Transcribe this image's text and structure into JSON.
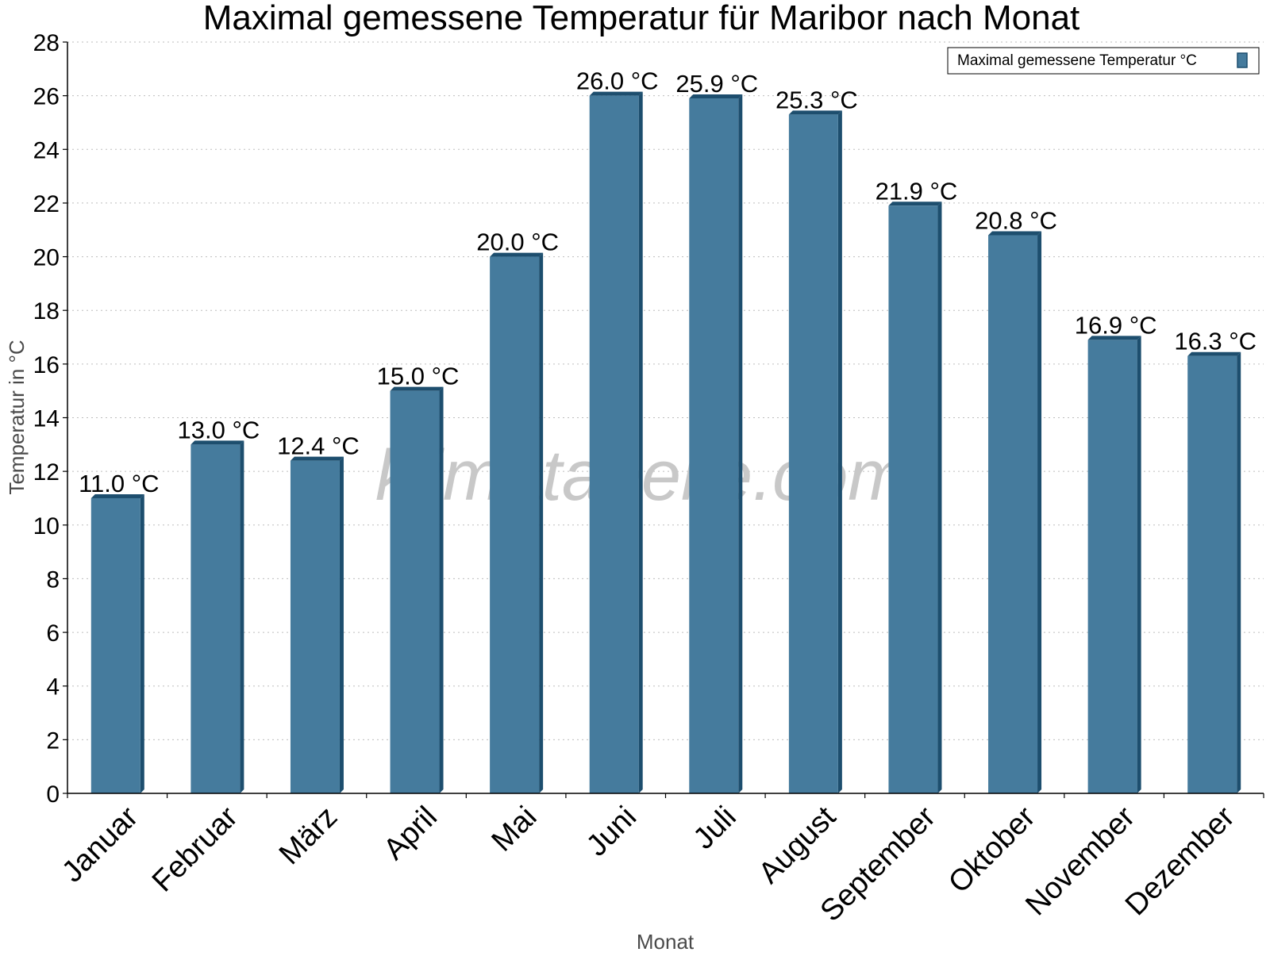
{
  "chart_data": {
    "type": "bar",
    "title": "Maximal gemessene Temperatur für Maribor nach Monat",
    "xlabel": "Monat",
    "ylabel": "Temperatur in °C",
    "categories": [
      "Januar",
      "Februar",
      "März",
      "April",
      "Mai",
      "Juni",
      "Juli",
      "August",
      "September",
      "Oktober",
      "November",
      "Dezember"
    ],
    "series": [
      {
        "name": "Maximal gemessene Temperatur °C",
        "values": [
          11.0,
          13.0,
          12.4,
          15.0,
          20.0,
          26.0,
          25.9,
          25.3,
          21.9,
          20.8,
          16.9,
          16.3
        ],
        "data_labels": [
          "11.0 °C",
          "13.0 °C",
          "12.4 °C",
          "15.0 °C",
          "20.0 °C",
          "26.0 °C",
          "25.9 °C",
          "25.3 °C",
          "21.9 °C",
          "20.8 °C",
          "16.9 °C",
          "16.3 °C"
        ],
        "color": "#457b9d",
        "edge_color": "#1d4e6e"
      }
    ],
    "ylim": [
      0,
      28
    ],
    "yticks": [
      0,
      2,
      4,
      6,
      8,
      10,
      12,
      14,
      16,
      18,
      20,
      22,
      24,
      26,
      28
    ],
    "grid": "horizontal dotted",
    "legend_position": "top-right",
    "watermark": "klimatabelle.com"
  }
}
